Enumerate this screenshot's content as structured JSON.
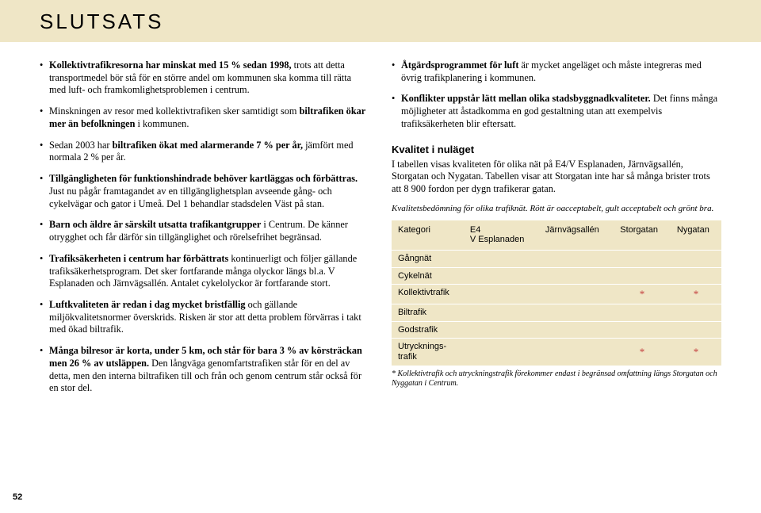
{
  "title": "SLUTSATS",
  "pageNumber": "52",
  "colors": {
    "boxBg": "#efe6c6",
    "starRed": "#c23a3a"
  },
  "left": {
    "bullets": [
      {
        "bold": "Kollektivtrafikresorna har minskat med 15 % sedan 1998,",
        "plain": " trots att detta transportmedel bör stå för en större andel om kommunen ska komma till rätta med luft- och framkomlighetsproblemen i centrum."
      },
      {
        "bold": "",
        "plain": "Minskningen av resor med kollektivtrafiken sker samtidigt som ",
        "bold2": "biltrafiken ökar mer än befolkningen",
        "plain2": " i kommunen."
      },
      {
        "bold": "",
        "plain": "Sedan 2003 har ",
        "bold2": "biltrafiken ökat med alarmerande 7 % per år,",
        "plain2": " jämfört med normala 2 % per år."
      },
      {
        "bold": "Tillgängligheten för funktionshindrade behöver kartläggas och förbättras.",
        "plain": " Just nu pågår framtagandet av en tillgänglighetsplan avseende gång- och cykelvägar och gator i Umeå. Del 1 behandlar stadsdelen Väst på stan."
      },
      {
        "bold": "Barn och äldre är särskilt utsatta trafikantgrupper",
        "plain": " i Centrum. De känner otrygghet och får därför sin tillgänglighet och rörelsefrihet begränsad."
      },
      {
        "bold": "Trafiksäkerheten i centrum har förbättrats",
        "plain": " kontinuerligt och följer gällande trafiksäkerhetsprogram. Det sker fortfarande många olyckor längs bl.a. V Esplanaden och Järnvägsallén. Antalet cykelolyckor är fortfarande stort."
      },
      {
        "bold": "Luftkvaliteten är redan i dag mycket bristfällig",
        "plain": " och gällande miljökvalitetsnormer överskrids. Risken är stor att detta problem förvärras i takt med ökad biltrafik."
      },
      {
        "bold": "Många bilresor är korta, under 5 km, och står för bara 3 % av körsträckan men 26 % av utsläppen.",
        "plain": " Den långväga genomfartstrafiken står för en del av detta, men den interna biltrafiken till och från och genom centrum står också för en stor del."
      }
    ]
  },
  "right": {
    "bullets": [
      {
        "bold": "Åtgärdsprogrammet för luft",
        "plain": " är mycket angeläget och måste integreras med övrig trafikplanering i kommunen."
      },
      {
        "bold": "Konflikter uppstår lätt mellan olika stadsbyggnadkvaliteter.",
        "plain": " Det finns många möjligheter att åstadkomma en god gestaltning utan att exempelvis trafiksäkerheten blir eftersatt."
      }
    ],
    "heading": "Kvalitet i nuläget",
    "paragraph": "I tabellen visas kvaliteten för olika nät på E4/V Esplanaden, Järnvägsallén, Storgatan och Nygatan. Tabellen visar att Storgatan inte har så många brister trots att 8 900 fordon per dygn trafikerar gatan.",
    "tableNote": "Kvalitetsbedömning för olika trafiknät. Rött är oacceptabelt, gult acceptabelt och grönt bra.",
    "table": {
      "headers": [
        "Kategori",
        "E4\nV Esplanaden",
        "Järnvägsallén",
        "Storgatan",
        "Nygatan"
      ],
      "rows": [
        {
          "label": "Gångnät",
          "cells": [
            "",
            "",
            "",
            ""
          ]
        },
        {
          "label": "Cykelnät",
          "cells": [
            "",
            "",
            "",
            ""
          ]
        },
        {
          "label": "Kollektivtrafik",
          "cells": [
            "",
            "",
            "*",
            "*"
          ]
        },
        {
          "label": "Biltrafik",
          "cells": [
            "",
            "",
            "",
            ""
          ]
        },
        {
          "label": "Godstrafik",
          "cells": [
            "",
            "",
            "",
            ""
          ]
        },
        {
          "label": "Utrycknings-\ntrafik",
          "cells": [
            "",
            "",
            "*",
            "*"
          ]
        }
      ]
    },
    "footnote": "* Kollektivtrafik och utryckningstrafik förekommer endast i begränsad omfattning längs Storgatan och Nyggatan i Centrum."
  }
}
